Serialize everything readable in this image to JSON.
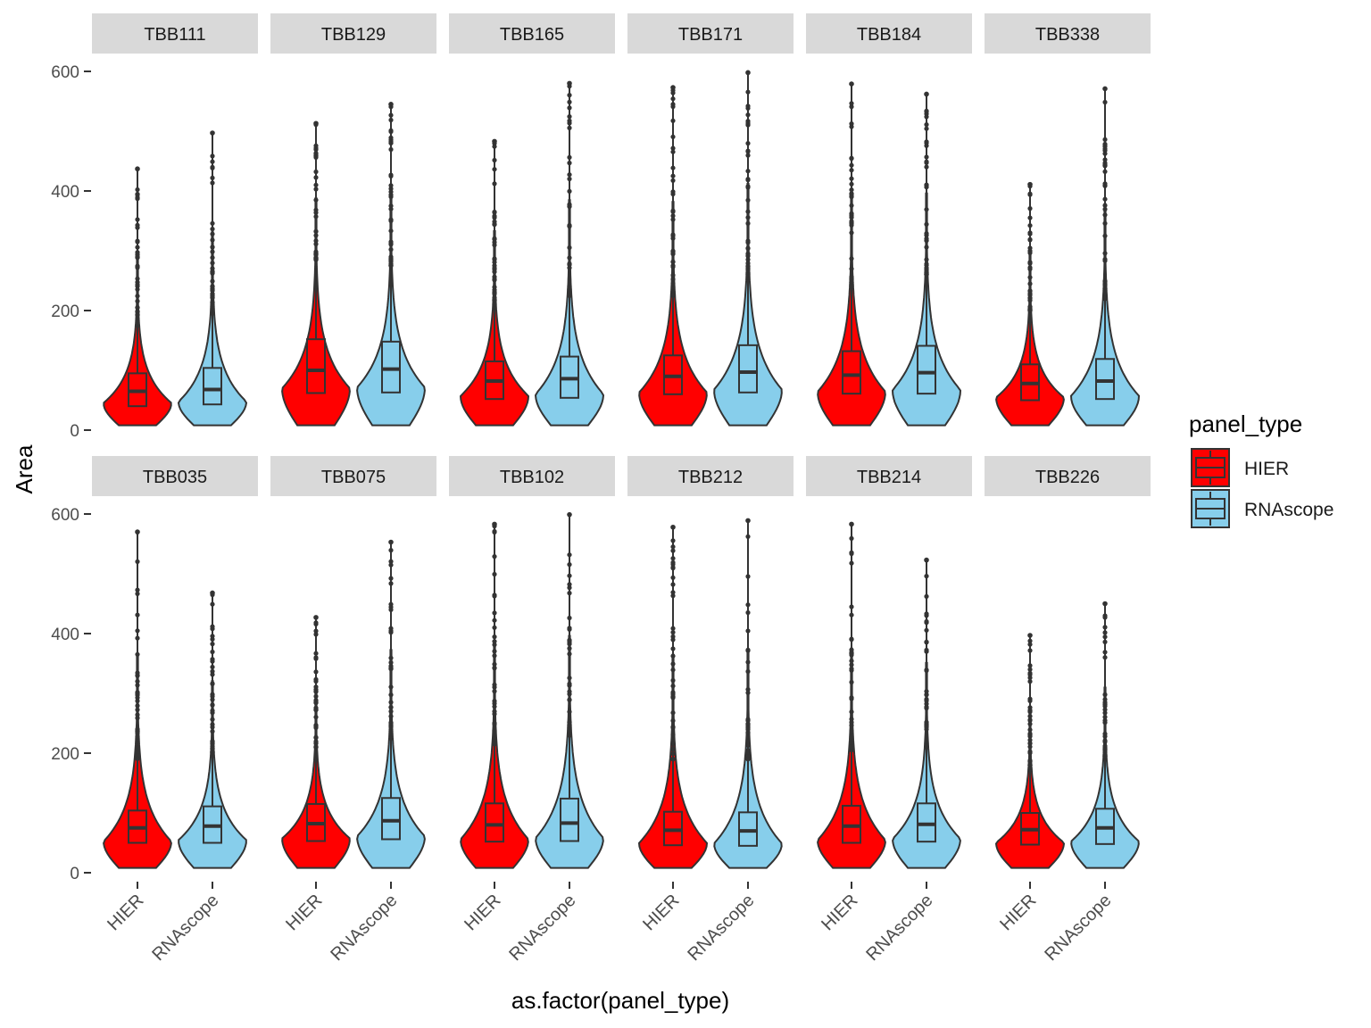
{
  "chart_data": {
    "type": "violin",
    "title": "",
    "xlabel": "as.factor(panel_type)",
    "ylabel": "Area",
    "ylim": [
      0,
      600
    ],
    "yticks": [
      0,
      200,
      400,
      600
    ],
    "categories": [
      "HIER",
      "RNAscope"
    ],
    "grid": false,
    "legend": {
      "title": "panel_type",
      "position": "right",
      "entries": [
        {
          "label": "HIER",
          "color": "#FF0000"
        },
        {
          "label": "RNAscope",
          "color": "#87CEEB"
        }
      ]
    },
    "facets": [
      {
        "label": "TBB111",
        "groups": [
          {
            "panel_type": "HIER",
            "max": 437,
            "q1": 40,
            "median": 65,
            "q3": 95,
            "whisker_high": 175,
            "min": 8
          },
          {
            "panel_type": "RNAscope",
            "max": 497,
            "q1": 43,
            "median": 68,
            "q3": 104,
            "whisker_high": 195,
            "min": 8
          }
        ]
      },
      {
        "label": "TBB129",
        "groups": [
          {
            "panel_type": "HIER",
            "max": 513,
            "q1": 62,
            "median": 100,
            "q3": 152,
            "whisker_high": 285,
            "min": 8
          },
          {
            "panel_type": "RNAscope",
            "max": 545,
            "q1": 63,
            "median": 102,
            "q3": 148,
            "whisker_high": 275,
            "min": 8
          }
        ]
      },
      {
        "label": "TBB165",
        "groups": [
          {
            "panel_type": "HIER",
            "max": 483,
            "q1": 52,
            "median": 82,
            "q3": 115,
            "whisker_high": 210,
            "min": 8
          },
          {
            "panel_type": "RNAscope",
            "max": 580,
            "q1": 54,
            "median": 86,
            "q3": 123,
            "whisker_high": 225,
            "min": 8
          }
        ]
      },
      {
        "label": "TBB171",
        "groups": [
          {
            "panel_type": "HIER",
            "max": 573,
            "q1": 60,
            "median": 90,
            "q3": 125,
            "whisker_high": 225,
            "min": 8
          },
          {
            "panel_type": "RNAscope",
            "max": 598,
            "q1": 63,
            "median": 97,
            "q3": 142,
            "whisker_high": 260,
            "min": 8
          }
        ]
      },
      {
        "label": "TBB184",
        "groups": [
          {
            "panel_type": "HIER",
            "max": 579,
            "q1": 61,
            "median": 92,
            "q3": 132,
            "whisker_high": 240,
            "min": 8
          },
          {
            "panel_type": "RNAscope",
            "max": 562,
            "q1": 61,
            "median": 96,
            "q3": 141,
            "whisker_high": 260,
            "min": 8
          }
        ]
      },
      {
        "label": "TBB338",
        "groups": [
          {
            "panel_type": "HIER",
            "max": 411,
            "q1": 50,
            "median": 78,
            "q3": 110,
            "whisker_high": 200,
            "min": 8
          },
          {
            "panel_type": "RNAscope",
            "max": 571,
            "q1": 52,
            "median": 82,
            "q3": 119,
            "whisker_high": 220,
            "min": 8
          }
        ]
      },
      {
        "label": "TBB035",
        "groups": [
          {
            "panel_type": "HIER",
            "max": 570,
            "q1": 50,
            "median": 75,
            "q3": 104,
            "whisker_high": 190,
            "min": 8
          },
          {
            "panel_type": "RNAscope",
            "max": 468,
            "q1": 50,
            "median": 78,
            "q3": 111,
            "whisker_high": 200,
            "min": 8
          }
        ]
      },
      {
        "label": "TBB075",
        "groups": [
          {
            "panel_type": "HIER",
            "max": 427,
            "q1": 53,
            "median": 82,
            "q3": 115,
            "whisker_high": 210,
            "min": 8
          },
          {
            "panel_type": "RNAscope",
            "max": 553,
            "q1": 56,
            "median": 87,
            "q3": 125,
            "whisker_high": 225,
            "min": 8
          }
        ]
      },
      {
        "label": "TBB102",
        "groups": [
          {
            "panel_type": "HIER",
            "max": 583,
            "q1": 52,
            "median": 80,
            "q3": 116,
            "whisker_high": 215,
            "min": 8
          },
          {
            "panel_type": "RNAscope",
            "max": 599,
            "q1": 53,
            "median": 83,
            "q3": 124,
            "whisker_high": 230,
            "min": 8
          }
        ]
      },
      {
        "label": "TBB212",
        "groups": [
          {
            "panel_type": "HIER",
            "max": 578,
            "q1": 46,
            "median": 71,
            "q3": 102,
            "whisker_high": 190,
            "min": 8
          },
          {
            "panel_type": "RNAscope",
            "max": 589,
            "q1": 45,
            "median": 70,
            "q3": 101,
            "whisker_high": 190,
            "min": 8
          }
        ]
      },
      {
        "label": "TBB214",
        "groups": [
          {
            "panel_type": "HIER",
            "max": 583,
            "q1": 50,
            "median": 78,
            "q3": 112,
            "whisker_high": 205,
            "min": 8
          },
          {
            "panel_type": "RNAscope",
            "max": 523,
            "q1": 52,
            "median": 81,
            "q3": 116,
            "whisker_high": 210,
            "min": 8
          }
        ]
      },
      {
        "label": "TBB226",
        "groups": [
          {
            "panel_type": "HIER",
            "max": 397,
            "q1": 47,
            "median": 72,
            "q3": 100,
            "whisker_high": 180,
            "min": 8
          },
          {
            "panel_type": "RNAscope",
            "max": 450,
            "q1": 48,
            "median": 75,
            "q3": 107,
            "whisker_high": 195,
            "min": 8
          }
        ]
      }
    ]
  }
}
